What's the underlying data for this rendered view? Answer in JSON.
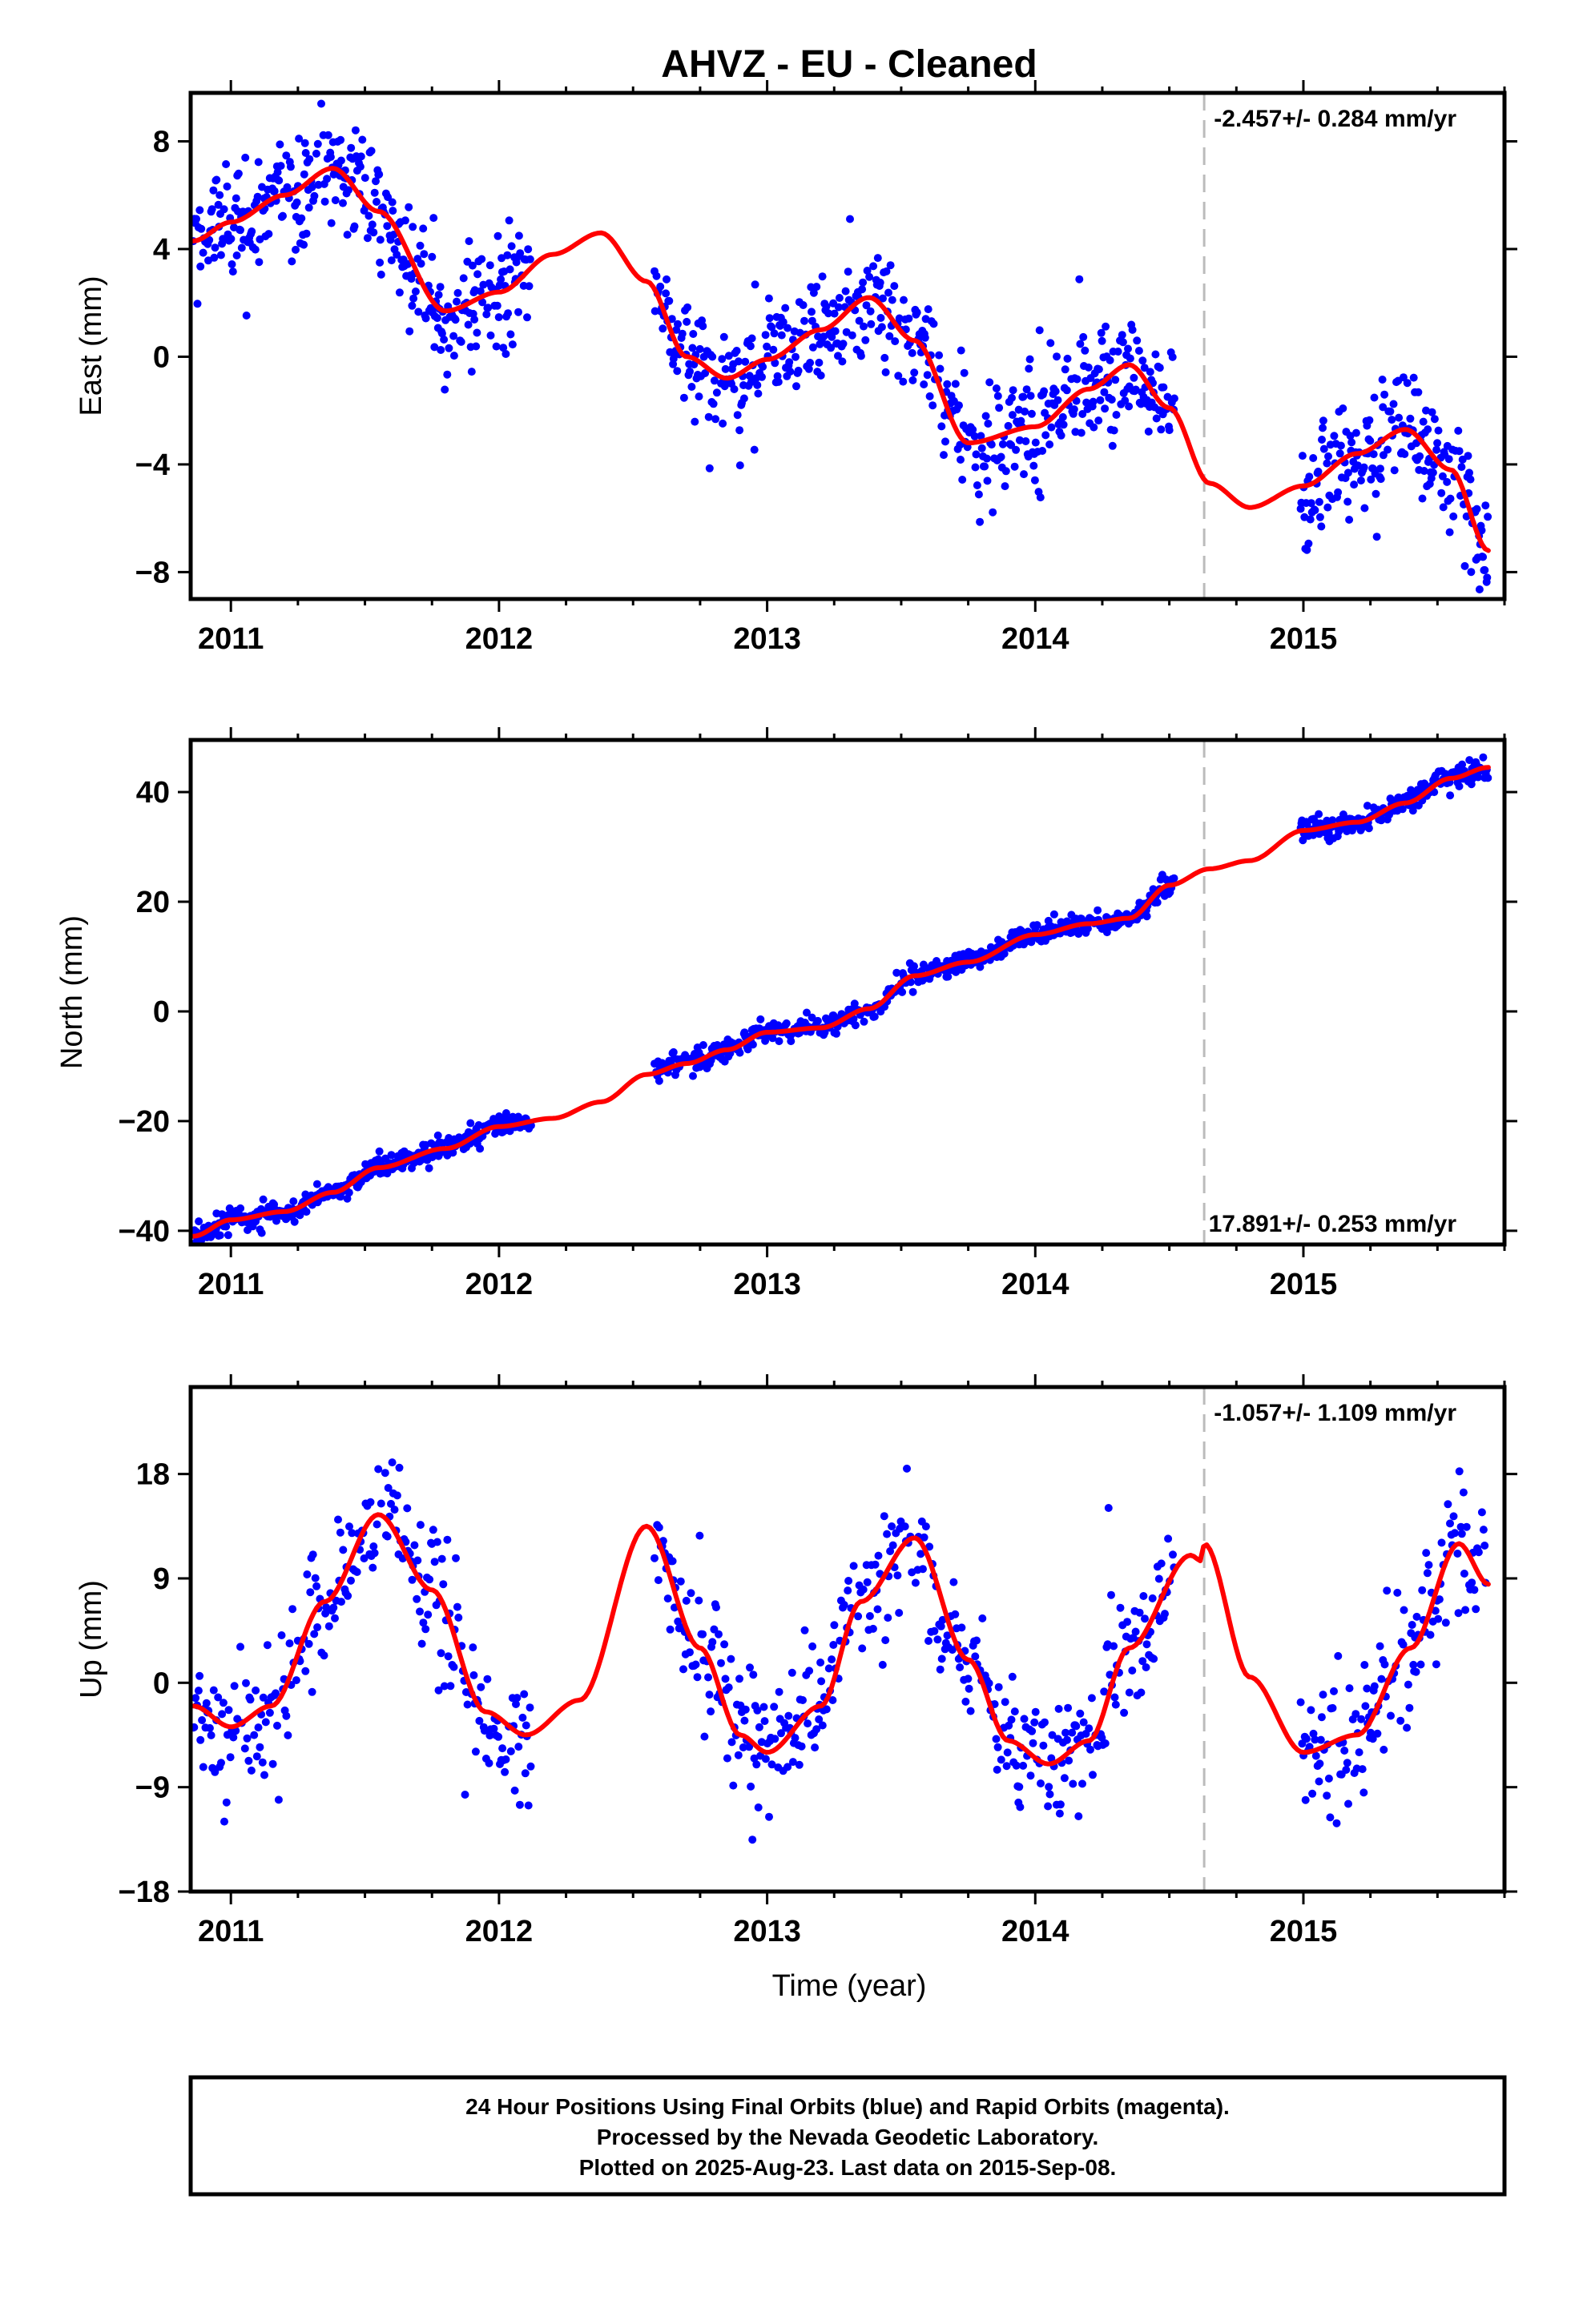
{
  "title": "AHVZ  - EU - Cleaned",
  "xlabel": "Time (year)",
  "footer_lines": [
    "24 Hour Positions Using Final Orbits (blue) and Rapid Orbits (magenta).",
    "Processed by the Nevada Geodetic Laboratory.",
    "Plotted on 2025-Aug-23. Last data on 2015-Sep-08."
  ],
  "colors": {
    "data": "#0000ff",
    "model": "#ff0000",
    "event": "#bbbbbb",
    "frame": "#000000"
  },
  "chart_data": [
    {
      "type": "scatter",
      "component": "east",
      "ylabel": "East (mm)",
      "rate_label": "-2.457+/- 0.284 mm/yr",
      "rate_position": "top-right",
      "xlim": [
        2010.85,
        2015.75
      ],
      "ylim": [
        -9,
        9.8
      ],
      "yticks": [
        -8,
        -4,
        0,
        4,
        8
      ],
      "xticks": [
        2011,
        2012,
        2013,
        2014,
        2015
      ],
      "event_line_x": 2014.63,
      "data_segments": [
        [
          2010.86,
          2012.12
        ],
        [
          2012.58,
          2014.52
        ],
        [
          2014.99,
          2015.69
        ]
      ],
      "model_curve": {
        "x": [
          2010.86,
          2011.0,
          2011.2,
          2011.38,
          2011.55,
          2011.8,
          2012.0,
          2012.2,
          2012.38,
          2012.55,
          2012.7,
          2012.85,
          2013.0,
          2013.2,
          2013.38,
          2013.55,
          2013.75,
          2014.0,
          2014.2,
          2014.35,
          2014.5,
          2014.65,
          2014.8,
          2015.0,
          2015.2,
          2015.38,
          2015.55,
          2015.69
        ],
        "y": [
          4.3,
          5.0,
          6.0,
          7.0,
          5.4,
          1.7,
          2.4,
          3.8,
          4.6,
          2.8,
          0.0,
          -0.8,
          -0.1,
          1.0,
          2.2,
          0.6,
          -3.2,
          -2.6,
          -1.2,
          -0.3,
          -1.9,
          -4.7,
          -5.6,
          -4.8,
          -3.6,
          -2.7,
          -4.2,
          -7.2
        ]
      }
    },
    {
      "type": "scatter",
      "component": "north",
      "ylabel": "North (mm)",
      "rate_label": "17.891+/- 0.253 mm/yr",
      "rate_position": "bottom-right",
      "xlim": [
        2010.85,
        2015.75
      ],
      "ylim": [
        -42.5,
        49.5
      ],
      "yticks": [
        -40,
        -20,
        0,
        20,
        40
      ],
      "xticks": [
        2011,
        2012,
        2013,
        2014,
        2015
      ],
      "event_line_x": 2014.63,
      "data_segments": [
        [
          2010.86,
          2012.12
        ],
        [
          2012.58,
          2014.52
        ],
        [
          2014.99,
          2015.69
        ]
      ],
      "model_curve": {
        "x": [
          2010.86,
          2011.0,
          2011.2,
          2011.38,
          2011.55,
          2011.8,
          2012.0,
          2012.2,
          2012.38,
          2012.55,
          2012.7,
          2012.85,
          2013.0,
          2013.2,
          2013.38,
          2013.55,
          2013.75,
          2014.0,
          2014.2,
          2014.35,
          2014.5,
          2014.65,
          2014.8,
          2015.0,
          2015.2,
          2015.38,
          2015.55,
          2015.69
        ],
        "y": [
          -41.0,
          -38.0,
          -36.5,
          -33.0,
          -28.5,
          -25.0,
          -21.0,
          -19.5,
          -16.5,
          -11.5,
          -9.5,
          -7.0,
          -3.8,
          -3.0,
          0.5,
          6.5,
          9.0,
          14.0,
          16.0,
          17.0,
          23.0,
          26.0,
          27.5,
          33.0,
          34.5,
          38.0,
          42.5,
          44.5
        ]
      }
    },
    {
      "type": "scatter",
      "component": "up",
      "ylabel": "Up (mm)",
      "rate_label": "-1.057+/- 1.109 mm/yr",
      "rate_position": "top-right",
      "xlim": [
        2010.85,
        2015.75
      ],
      "ylim": [
        -18,
        25.5
      ],
      "yticks": [
        -18,
        -9,
        0,
        9,
        18
      ],
      "xticks": [
        2011,
        2012,
        2013,
        2014,
        2015
      ],
      "event_line_x": 2014.63,
      "data_segments": [
        [
          2010.86,
          2012.12
        ],
        [
          2012.58,
          2014.52
        ],
        [
          2014.99,
          2015.69
        ]
      ],
      "model_curve": {
        "x": [
          2010.86,
          2011.0,
          2011.15,
          2011.35,
          2011.55,
          2011.75,
          2011.95,
          2012.1,
          2012.3,
          2012.55,
          2012.75,
          2012.9,
          2013.0,
          2013.2,
          2013.35,
          2013.55,
          2013.75,
          2013.9,
          2014.05,
          2014.2,
          2014.35,
          2014.58,
          2014.62,
          2014.63,
          2014.8,
          2015.0,
          2015.2,
          2015.4,
          2015.58,
          2015.69
        ],
        "y": [
          -2.0,
          -3.8,
          -2.0,
          7.0,
          14.5,
          8.0,
          -2.5,
          -4.5,
          -1.5,
          13.5,
          3.0,
          -4.5,
          -6.0,
          -2.0,
          7.0,
          12.5,
          2.0,
          -5.0,
          -7.0,
          -5.0,
          3.0,
          11.0,
          10.5,
          12.0,
          0.5,
          -6.0,
          -4.5,
          3.0,
          12.0,
          8.5
        ]
      }
    }
  ]
}
